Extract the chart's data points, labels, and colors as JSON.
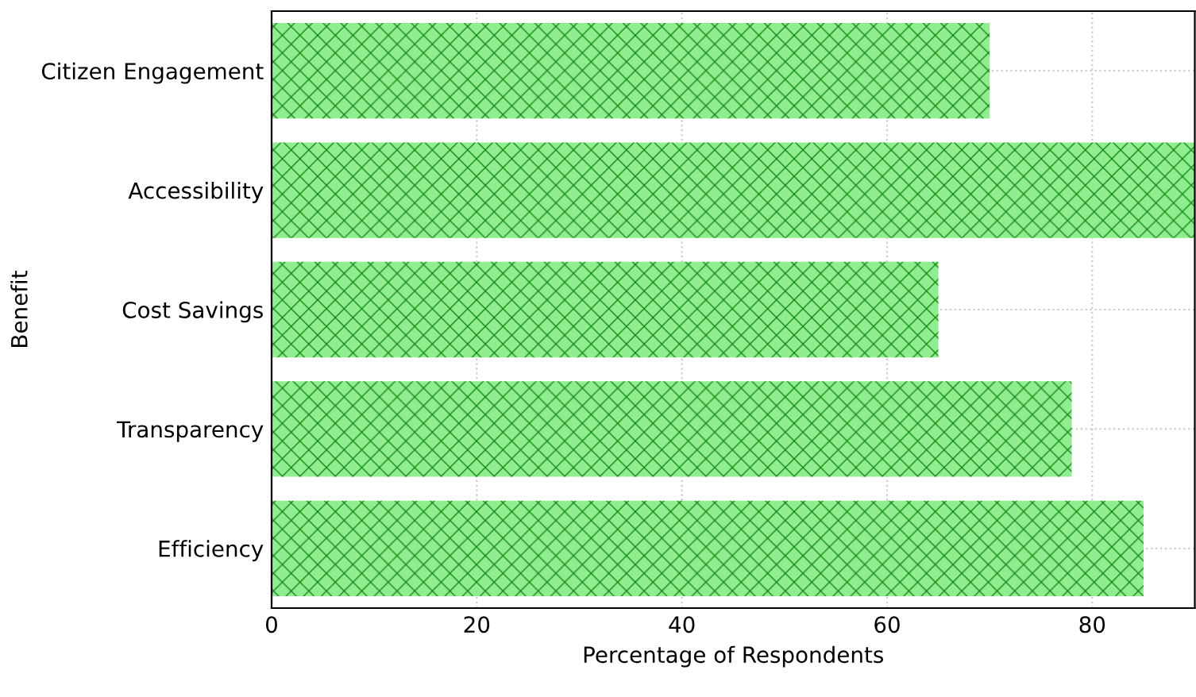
{
  "chart_data": {
    "type": "bar",
    "orientation": "horizontal",
    "xlabel": "Percentage of Respondents",
    "ylabel": "Benefit",
    "categories": [
      "Citizen Engagement",
      "Accessibility",
      "Cost Savings",
      "Transparency",
      "Efficiency"
    ],
    "values": [
      70,
      90,
      65,
      78,
      85
    ],
    "color": "#90ee90",
    "xlim": [
      0,
      90
    ],
    "xticks": [
      0,
      20,
      40,
      60,
      80
    ],
    "grid": true
  }
}
